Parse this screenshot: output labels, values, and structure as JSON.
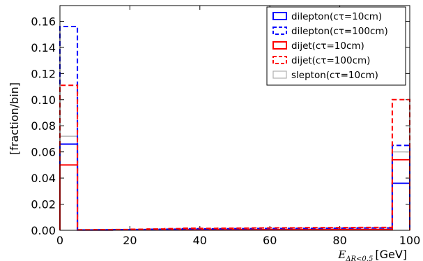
{
  "chart_data": {
    "type": "histogram",
    "title": "",
    "ylabel": "[fraction/bin]",
    "xlabel": {
      "main": "E",
      "subscript": "ΔR<0.5",
      "unit": "[GeV]"
    },
    "xlim": [
      0,
      100
    ],
    "ylim": [
      0,
      0.172
    ],
    "xticks": [
      "0",
      "20",
      "40",
      "60",
      "80",
      "100"
    ],
    "yticks": [
      "0.00",
      "0.02",
      "0.04",
      "0.06",
      "0.08",
      "0.10",
      "0.12",
      "0.14",
      "0.16"
    ],
    "grid": false,
    "legend_position": "top-right",
    "bin_edges": [
      0,
      5,
      10,
      15,
      20,
      25,
      30,
      35,
      40,
      45,
      50,
      55,
      60,
      65,
      70,
      75,
      80,
      85,
      90,
      95,
      100
    ],
    "series": [
      {
        "name": "dilepton(cτ=10cm)",
        "color": "#0000ff",
        "style": "solid",
        "values": [
          0.066,
          0.0002,
          0.0002,
          0.0003,
          0.0003,
          0.0003,
          0.0003,
          0.0004,
          0.0004,
          0.0004,
          0.0005,
          0.0005,
          0.0005,
          0.0005,
          0.0006,
          0.0006,
          0.0006,
          0.0006,
          0.0006,
          0.036
        ]
      },
      {
        "name": "dilepton(cτ=100cm)",
        "color": "#0000ff",
        "style": "dashed",
        "values": [
          0.156,
          0.0003,
          0.0004,
          0.0005,
          0.0006,
          0.0008,
          0.0009,
          0.0012,
          0.0011,
          0.0012,
          0.0013,
          0.0014,
          0.0014,
          0.0015,
          0.0015,
          0.0016,
          0.0017,
          0.0018,
          0.0018,
          0.065
        ]
      },
      {
        "name": "dijet(cτ=10cm)",
        "color": "#ff0000",
        "style": "solid",
        "values": [
          0.05,
          0.0002,
          0.0002,
          0.0003,
          0.0003,
          0.0003,
          0.0004,
          0.0004,
          0.0004,
          0.0005,
          0.0005,
          0.0005,
          0.0005,
          0.0006,
          0.0006,
          0.0006,
          0.0007,
          0.0007,
          0.0007,
          0.054
        ]
      },
      {
        "name": "dijet(cτ=100cm)",
        "color": "#ff0000",
        "style": "dashed",
        "values": [
          0.111,
          0.0004,
          0.0005,
          0.0006,
          0.0008,
          0.001,
          0.0013,
          0.0016,
          0.0015,
          0.0016,
          0.0017,
          0.0018,
          0.0019,
          0.0019,
          0.002,
          0.002,
          0.0021,
          0.0022,
          0.0022,
          0.1
        ]
      },
      {
        "name": "slepton(cτ=10cm)",
        "color": "#b0b0b0",
        "style": "solid",
        "values": [
          0.072,
          0.0002,
          0.0002,
          0.0003,
          0.0003,
          0.0003,
          0.0003,
          0.0004,
          0.0004,
          0.0004,
          0.0004,
          0.0005,
          0.0005,
          0.0005,
          0.0005,
          0.0005,
          0.0006,
          0.0006,
          0.0006,
          0.06
        ]
      }
    ]
  }
}
